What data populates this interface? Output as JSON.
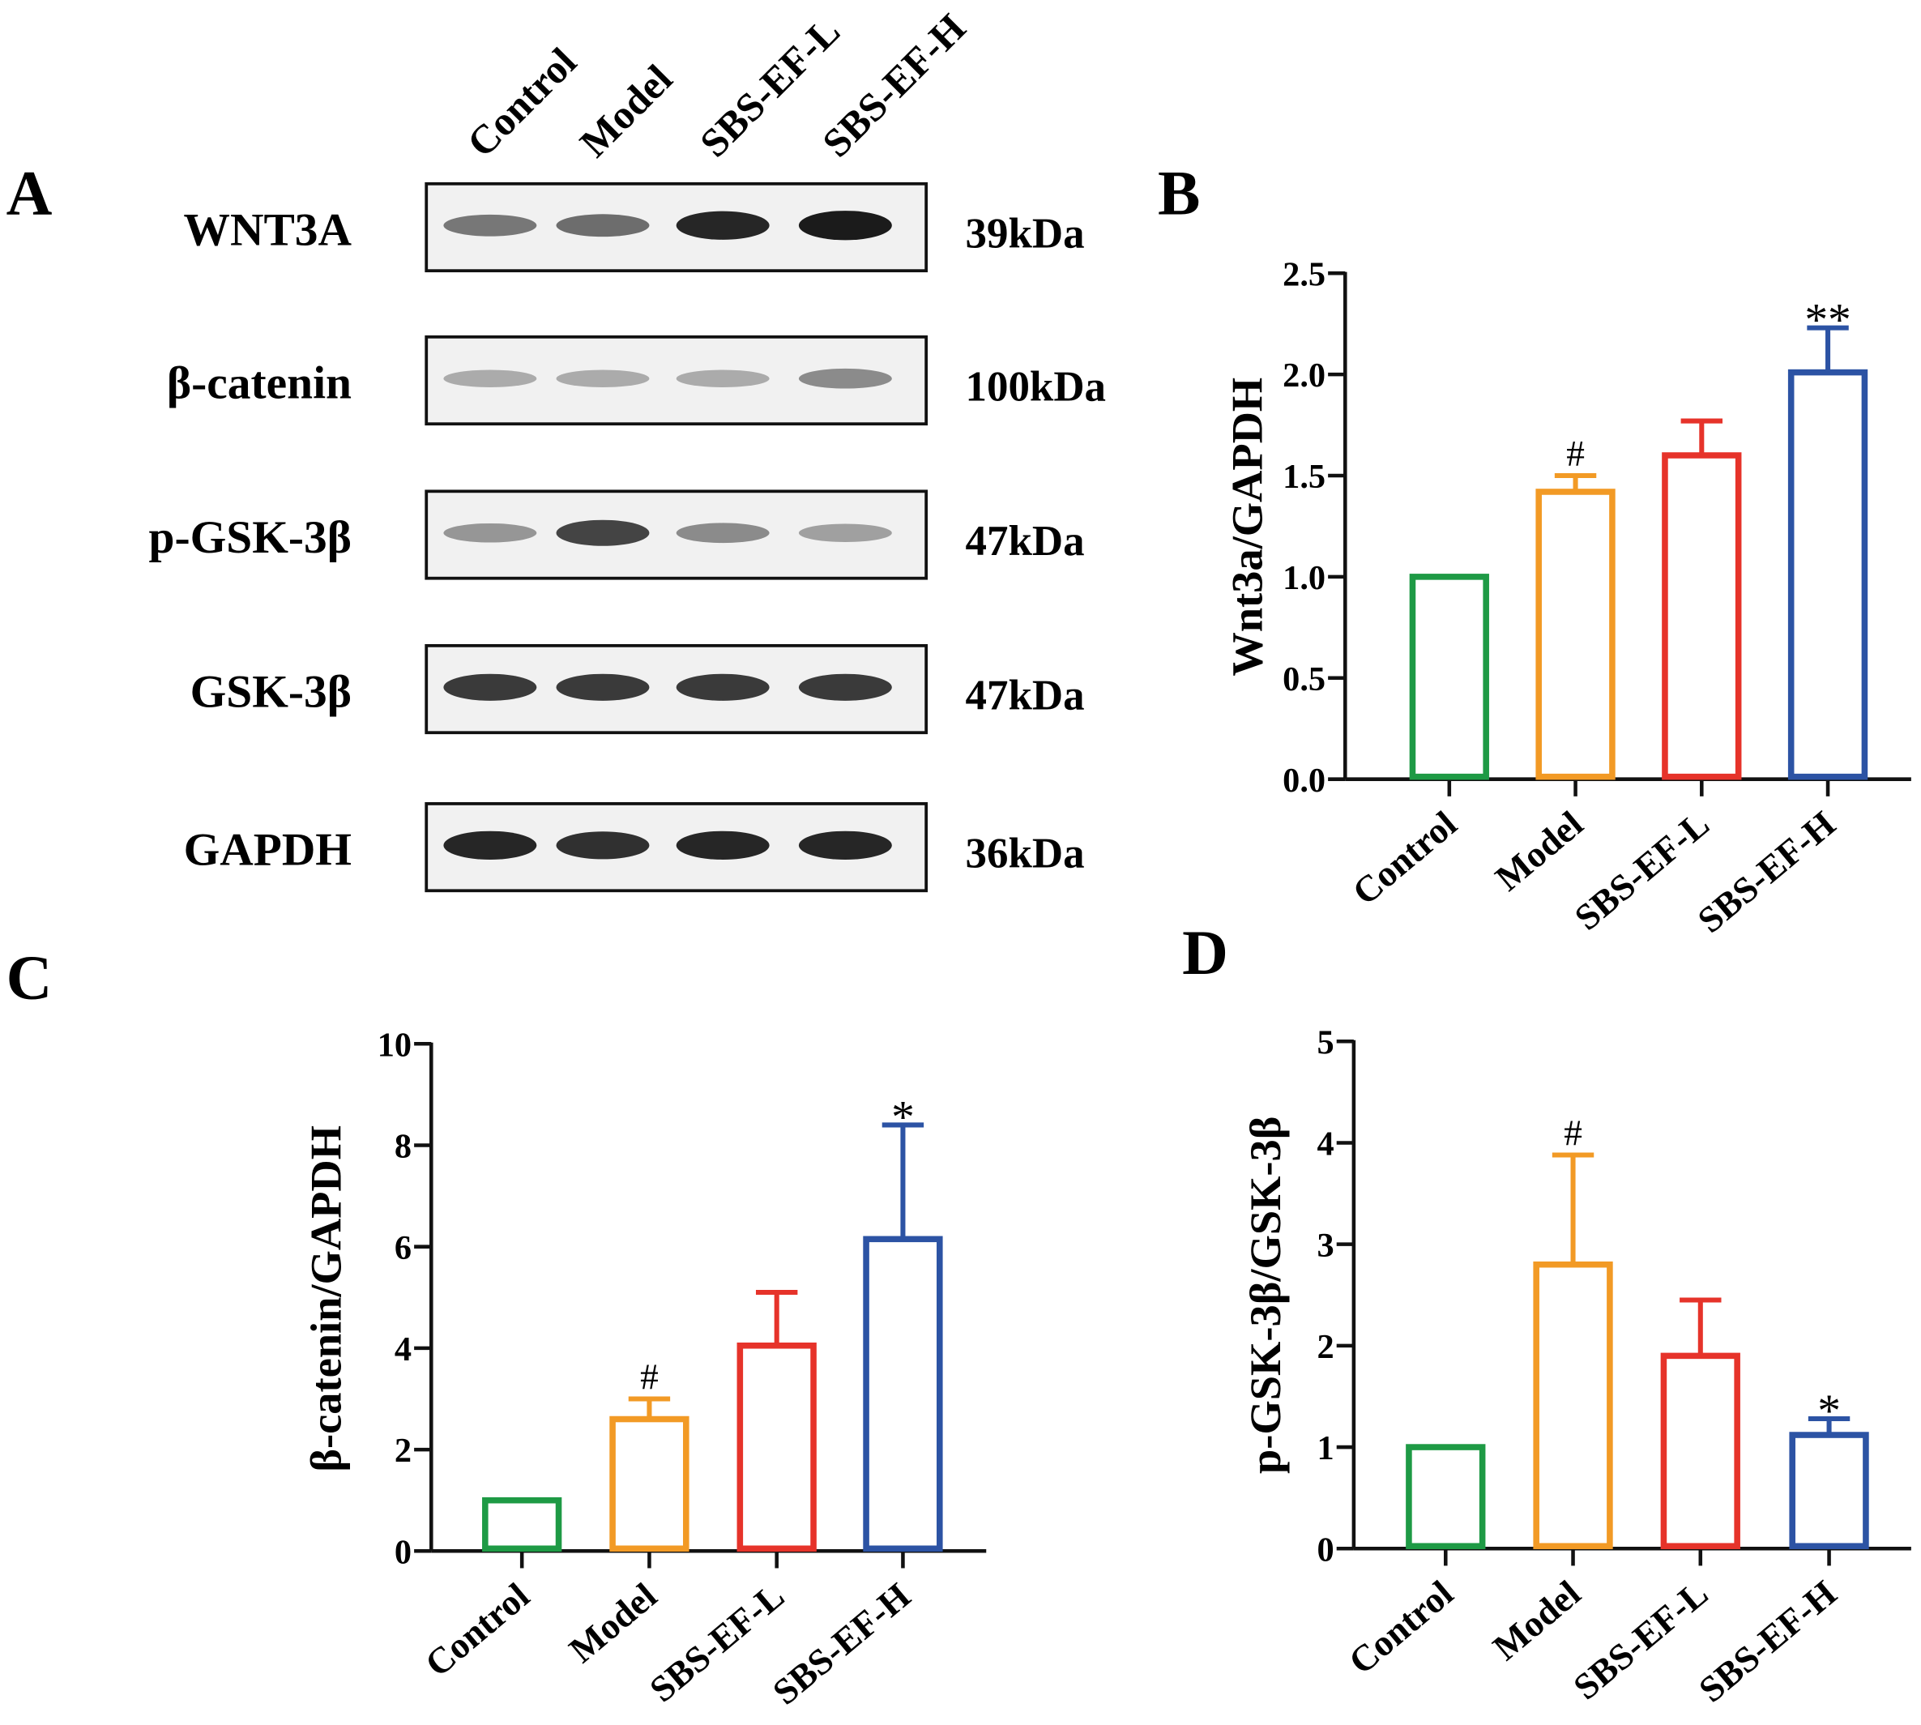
{
  "panel_letters": {
    "a": "A",
    "b": "B",
    "c": "C",
    "d": "D"
  },
  "colors": {
    "Control": "#1e9a45",
    "Model": "#f29a25",
    "SBS-EF-L": "#e6332a",
    "SBS-EF-H": "#2c53a4",
    "axis": "#111111"
  },
  "blot": {
    "lanes": [
      "Control",
      "Model",
      "SBS-EF-L",
      "SBS-EF-H"
    ],
    "rows": [
      {
        "protein": "WNT3A",
        "mw": "39kDa",
        "band_intensity": [
          0.55,
          0.6,
          0.95,
          1.0
        ]
      },
      {
        "protein": "β-catenin",
        "mw": "100kDa",
        "band_intensity": [
          0.3,
          0.3,
          0.3,
          0.45
        ]
      },
      {
        "protein": "p-GSK-3β",
        "mw": "47kDa",
        "band_intensity": [
          0.4,
          0.8,
          0.45,
          0.35
        ]
      },
      {
        "protein": "GSK-3β",
        "mw": "47kDa",
        "band_intensity": [
          0.85,
          0.85,
          0.85,
          0.85
        ]
      },
      {
        "protein": "GAPDH",
        "mw": "36kDa",
        "band_intensity": [
          0.95,
          0.9,
          0.95,
          0.95
        ]
      }
    ]
  },
  "chart_data": [
    {
      "panel": "B",
      "type": "bar",
      "categories": [
        "Control",
        "Model",
        "SBS-EF-L",
        "SBS-EF-H"
      ],
      "values": [
        1.0,
        1.42,
        1.6,
        2.01
      ],
      "errors": [
        0,
        0.08,
        0.17,
        0.22
      ],
      "annotations": [
        "",
        "#",
        "",
        "**"
      ],
      "ylabel": "Wnt3a/GAPDH",
      "ylim": [
        0,
        2.5
      ],
      "yticks": [
        "0.0",
        "0.5",
        "1.0",
        "1.5",
        "2.0",
        "2.5"
      ]
    },
    {
      "panel": "C",
      "type": "bar",
      "categories": [
        "Control",
        "Model",
        "SBS-EF-L",
        "SBS-EF-H"
      ],
      "values": [
        1.0,
        2.6,
        4.05,
        6.15
      ],
      "errors": [
        0,
        0.4,
        1.05,
        2.25
      ],
      "annotations": [
        "",
        "#",
        "",
        "*"
      ],
      "ylabel": "β-catenin/GAPDH",
      "ylim": [
        0,
        10
      ],
      "yticks": [
        "0",
        "2",
        "4",
        "6",
        "8",
        "10"
      ]
    },
    {
      "panel": "D",
      "type": "bar",
      "categories": [
        "Control",
        "Model",
        "SBS-EF-L",
        "SBS-EF-H"
      ],
      "values": [
        1.0,
        2.8,
        1.9,
        1.12
      ],
      "errors": [
        0,
        1.08,
        0.55,
        0.16
      ],
      "annotations": [
        "",
        "#",
        "",
        "*"
      ],
      "ylabel": "p-GSK-3β/GSK-3β",
      "ylim": [
        0,
        5
      ],
      "yticks": [
        "0",
        "1",
        "2",
        "3",
        "4",
        "5"
      ]
    }
  ]
}
